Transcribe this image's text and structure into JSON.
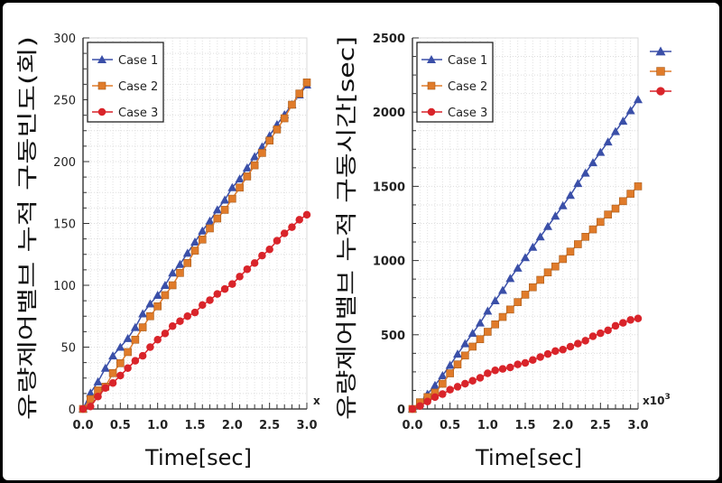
{
  "chart_data": [
    {
      "type": "line",
      "xlabel": "Time[sec]",
      "ylabel": "유량제어밸브 누적 구동빈도(회)",
      "x_multiplier_label": "x",
      "xlim": [
        0,
        3.0
      ],
      "ylim": [
        0,
        300
      ],
      "xticks": [
        "0.0",
        "0.5",
        "1.0",
        "1.5",
        "2.0",
        "2.5",
        "3.0"
      ],
      "yticks": [
        "0",
        "50",
        "100",
        "150",
        "200",
        "250",
        "300"
      ],
      "grid": true,
      "legend": "top-left",
      "x": [
        0,
        0.1,
        0.2,
        0.3,
        0.4,
        0.5,
        0.6,
        0.7,
        0.8,
        0.9,
        1.0,
        1.1,
        1.2,
        1.3,
        1.4,
        1.5,
        1.6,
        1.7,
        1.8,
        1.9,
        2.0,
        2.1,
        2.2,
        2.3,
        2.4,
        2.5,
        2.6,
        2.7,
        2.8,
        2.9,
        3.0
      ],
      "series": [
        {
          "name": "Case 1",
          "marker": "triangle",
          "color": "#3a4fa8",
          "values": [
            0,
            13,
            22,
            33,
            43,
            50,
            57,
            66,
            77,
            85,
            92,
            100,
            110,
            117,
            126,
            135,
            144,
            152,
            161,
            169,
            179,
            186,
            195,
            204,
            212,
            221,
            230,
            238,
            246,
            254,
            262
          ]
        },
        {
          "name": "Case 2",
          "marker": "square",
          "color": "#e07b2a",
          "values": [
            0,
            8,
            15,
            18,
            29,
            37,
            46,
            56,
            66,
            75,
            83,
            92,
            100,
            110,
            118,
            128,
            137,
            146,
            154,
            161,
            170,
            179,
            188,
            197,
            207,
            217,
            226,
            235,
            246,
            255,
            264
          ]
        },
        {
          "name": "Case 3",
          "marker": "circle",
          "color": "#d9242a",
          "values": [
            0,
            2,
            10,
            17,
            21,
            27,
            33,
            39,
            43,
            50,
            56,
            61,
            67,
            71,
            75,
            78,
            84,
            88,
            93,
            97,
            101,
            107,
            113,
            118,
            124,
            129,
            136,
            142,
            147,
            153,
            157
          ]
        }
      ]
    },
    {
      "type": "line",
      "xlabel": "Time[sec]",
      "ylabel": "유량제어밸브 누적 구동시간[sec]",
      "x_multiplier_label": "x10",
      "x_multiplier_exp": "3",
      "xlim": [
        0,
        3.0
      ],
      "ylim": [
        0,
        2500
      ],
      "xticks": [
        "0.0",
        "0.5",
        "1.0",
        "1.5",
        "2.0",
        "2.5",
        "3.0"
      ],
      "yticks": [
        "0",
        "500",
        "1000",
        "1500",
        "2000",
        "2500"
      ],
      "grid": true,
      "legend": "top-left",
      "x": [
        0,
        0.1,
        0.2,
        0.3,
        0.4,
        0.5,
        0.6,
        0.7,
        0.8,
        0.9,
        1.0,
        1.1,
        1.2,
        1.3,
        1.4,
        1.5,
        1.6,
        1.7,
        1.8,
        1.9,
        2.0,
        2.1,
        2.2,
        2.3,
        2.4,
        2.5,
        2.6,
        2.7,
        2.8,
        2.9,
        3.0
      ],
      "series": [
        {
          "name": "Case 1",
          "marker": "triangle",
          "color": "#3a4fa8",
          "values": [
            0,
            40,
            100,
            160,
            225,
            295,
            370,
            440,
            510,
            580,
            660,
            730,
            800,
            880,
            950,
            1020,
            1090,
            1160,
            1230,
            1300,
            1370,
            1440,
            1520,
            1590,
            1660,
            1730,
            1800,
            1870,
            1940,
            2010,
            2085
          ]
        },
        {
          "name": "Case 2",
          "marker": "square",
          "color": "#e07b2a",
          "values": [
            0,
            45,
            80,
            110,
            170,
            240,
            300,
            360,
            420,
            470,
            520,
            570,
            620,
            670,
            720,
            770,
            820,
            870,
            920,
            960,
            1010,
            1060,
            1110,
            1160,
            1210,
            1260,
            1310,
            1350,
            1400,
            1450,
            1500
          ]
        },
        {
          "name": "Case 3",
          "marker": "circle",
          "color": "#d9242a",
          "values": [
            0,
            20,
            50,
            80,
            100,
            130,
            150,
            170,
            190,
            210,
            240,
            260,
            270,
            280,
            300,
            310,
            330,
            350,
            370,
            390,
            400,
            420,
            440,
            460,
            490,
            510,
            530,
            560,
            580,
            600,
            610
          ]
        }
      ]
    }
  ]
}
